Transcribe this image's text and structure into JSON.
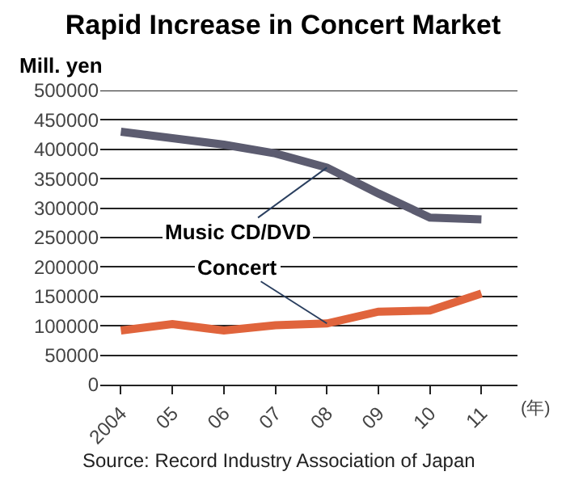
{
  "chart_data": {
    "type": "line",
    "title": "Rapid Increase in Concert Market",
    "ylabel": "Mill. yen",
    "xlabel": "(年)",
    "categories": [
      "2004",
      "05",
      "06",
      "07",
      "08",
      "09",
      "10",
      "11"
    ],
    "series": [
      {
        "name": "Music CD/DVD",
        "color": "#5c5c70",
        "values": [
          430000,
          419000,
          408000,
          393000,
          369000,
          325000,
          284000,
          281000
        ]
      },
      {
        "name": "Concert",
        "color": "#e0643c",
        "values": [
          92000,
          103000,
          92000,
          101000,
          104000,
          124000,
          126000,
          155000
        ]
      }
    ],
    "ylim": [
      0,
      500000
    ],
    "yticks": [
      0,
      50000,
      100000,
      150000,
      200000,
      250000,
      300000,
      350000,
      400000,
      450000,
      500000
    ],
    "grid": "y",
    "legend": false,
    "marker": "none",
    "line_style": "solid",
    "annotations": [
      "Source: Record Industry Association of Japan"
    ]
  }
}
